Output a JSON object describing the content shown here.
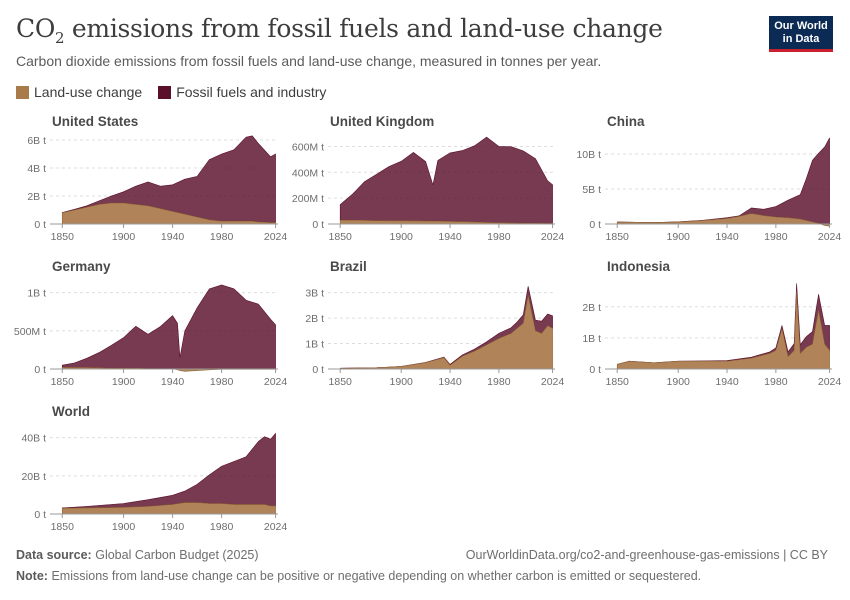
{
  "title_main": "CO",
  "title_sub": "2",
  "title_rest": " emissions from fossil fuels and land-use change",
  "subtitle": "Carbon dioxide emissions from fossil fuels and land-use change, measured in tonnes per year.",
  "logo": {
    "line1": "Our World",
    "line2": "in Data"
  },
  "legend": [
    {
      "label": "Land-use change",
      "color": "#a97a4a"
    },
    {
      "label": "Fossil fuels and industry",
      "color": "#5a0f2b"
    }
  ],
  "footer": {
    "source_label": "Data source:",
    "source_value": "Global Carbon Budget (2025)",
    "url": "OurWorldinData.org/co2-and-greenhouse-gas-emissions | CC BY",
    "note_label": "Note:",
    "note_value": "Emissions from land-use change can be positive or negative depending on whether carbon is emitted or sequestered."
  },
  "chart_data": [
    {
      "type": "area",
      "title": "United States",
      "xticks": [
        1850,
        1900,
        1940,
        1980,
        2024
      ],
      "ylim": [
        0,
        6000000000
      ],
      "yticks": [
        0,
        2000000000,
        4000000000,
        6000000000
      ],
      "ytick_labels": [
        "0 t",
        "2B t",
        "4B t",
        "6B t"
      ],
      "x": [
        1850,
        1860,
        1870,
        1880,
        1890,
        1900,
        1910,
        1920,
        1930,
        1940,
        1950,
        1960,
        1970,
        1980,
        1990,
        2000,
        2005,
        2010,
        2020,
        2024
      ],
      "series": [
        {
          "name": "Land-use change",
          "values": [
            800000000,
            1000000000,
            1200000000,
            1400000000,
            1500000000,
            1500000000,
            1400000000,
            1300000000,
            1100000000,
            900000000,
            700000000,
            500000000,
            300000000,
            200000000,
            200000000,
            200000000,
            200000000,
            150000000,
            100000000,
            100000000
          ]
        },
        {
          "name": "Fossil fuels and industry",
          "values": [
            20000000,
            50000000,
            100000000,
            250000000,
            500000000,
            800000000,
            1300000000,
            1700000000,
            1600000000,
            1900000000,
            2500000000,
            2900000000,
            4300000000,
            4800000000,
            5100000000,
            6000000000,
            6100000000,
            5600000000,
            4700000000,
            4900000000
          ]
        }
      ]
    },
    {
      "type": "area",
      "title": "United Kingdom",
      "xticks": [
        1850,
        1900,
        1940,
        1980,
        2024
      ],
      "ylim": [
        0,
        650000000
      ],
      "yticks": [
        0,
        200000000,
        400000000,
        600000000
      ],
      "ytick_labels": [
        "0 t",
        "200M t",
        "400M t",
        "600M t"
      ],
      "x": [
        1850,
        1860,
        1870,
        1880,
        1890,
        1900,
        1910,
        1920,
        1926,
        1930,
        1940,
        1950,
        1960,
        1970,
        1980,
        1990,
        2000,
        2010,
        2020,
        2024
      ],
      "series": [
        {
          "name": "Land-use change",
          "values": [
            30000000,
            30000000,
            28000000,
            26000000,
            25000000,
            25000000,
            24000000,
            23000000,
            22000000,
            22000000,
            20000000,
            18000000,
            15000000,
            12000000,
            10000000,
            8000000,
            6000000,
            5000000,
            4000000,
            4000000
          ]
        },
        {
          "name": "Fossil fuels and industry",
          "values": [
            120000000,
            200000000,
            300000000,
            360000000,
            420000000,
            460000000,
            530000000,
            460000000,
            280000000,
            470000000,
            530000000,
            550000000,
            590000000,
            660000000,
            590000000,
            590000000,
            560000000,
            500000000,
            330000000,
            300000000
          ]
        }
      ]
    },
    {
      "type": "area",
      "title": "China",
      "xticks": [
        1850,
        1900,
        1940,
        1980,
        2024
      ],
      "ylim": [
        0,
        12000000000
      ],
      "yticks": [
        0,
        5000000000,
        10000000000
      ],
      "ytick_labels": [
        "0 t",
        "5B t",
        "10B t"
      ],
      "x": [
        1850,
        1880,
        1900,
        1920,
        1940,
        1950,
        1960,
        1970,
        1980,
        1990,
        2000,
        2005,
        2010,
        2015,
        2020,
        2024
      ],
      "series": [
        {
          "name": "Land-use change",
          "values": [
            300000000,
            200000000,
            300000000,
            500000000,
            800000000,
            1100000000,
            1500000000,
            1200000000,
            1000000000,
            900000000,
            700000000,
            500000000,
            300000000,
            100000000,
            -200000000,
            -300000000
          ]
        },
        {
          "name": "Fossil fuels and industry",
          "values": [
            0,
            0,
            10000000,
            20000000,
            100000000,
            80000000,
            800000000,
            900000000,
            1500000000,
            2500000000,
            3500000000,
            6000000000,
            8800000000,
            10000000000,
            11000000000,
            12300000000
          ]
        }
      ]
    },
    {
      "type": "area",
      "title": "Germany",
      "xticks": [
        1850,
        1900,
        1940,
        1980,
        2024
      ],
      "ylim": [
        0,
        1100000000
      ],
      "yticks": [
        0,
        500000000,
        1000000000
      ],
      "ytick_labels": [
        "0 t",
        "500M t",
        "1B t"
      ],
      "x": [
        1850,
        1860,
        1870,
        1880,
        1890,
        1900,
        1910,
        1920,
        1930,
        1940,
        1944,
        1946,
        1950,
        1960,
        1970,
        1980,
        1990,
        2000,
        2010,
        2020,
        2024
      ],
      "series": [
        {
          "name": "Land-use change",
          "values": [
            20000000,
            20000000,
            20000000,
            15000000,
            10000000,
            10000000,
            10000000,
            5000000,
            5000000,
            0,
            -10000000,
            -20000000,
            -30000000,
            -20000000,
            -10000000,
            -5000000,
            -5000000,
            -5000000,
            -5000000,
            -5000000,
            -5000000
          ]
        },
        {
          "name": "Fossil fuels and industry",
          "values": [
            30000000,
            60000000,
            120000000,
            200000000,
            300000000,
            400000000,
            550000000,
            450000000,
            550000000,
            700000000,
            600000000,
            150000000,
            500000000,
            800000000,
            1050000000,
            1100000000,
            1050000000,
            900000000,
            850000000,
            650000000,
            580000000
          ]
        }
      ]
    },
    {
      "type": "area",
      "title": "Brazil",
      "xticks": [
        1850,
        1900,
        1940,
        1980,
        2024
      ],
      "ylim": [
        0,
        3300000000
      ],
      "yticks": [
        0,
        1000000000,
        2000000000,
        3000000000
      ],
      "ytick_labels": [
        "0 t",
        "1B t",
        "2B t",
        "3B t"
      ],
      "x": [
        1850,
        1880,
        1900,
        1920,
        1935,
        1940,
        1950,
        1960,
        1970,
        1980,
        1990,
        1995,
        2000,
        2004,
        2010,
        2015,
        2020,
        2024
      ],
      "series": [
        {
          "name": "Land-use change",
          "values": [
            30000000,
            50000000,
            100000000,
            250000000,
            450000000,
            150000000,
            500000000,
            700000000,
            950000000,
            1200000000,
            1400000000,
            1600000000,
            1800000000,
            2900000000,
            1500000000,
            1400000000,
            1700000000,
            1600000000
          ]
        },
        {
          "name": "Fossil fuels and industry",
          "values": [
            0,
            0,
            0,
            10000000,
            20000000,
            30000000,
            50000000,
            80000000,
            120000000,
            200000000,
            220000000,
            250000000,
            330000000,
            350000000,
            420000000,
            480000000,
            460000000,
            490000000
          ]
        }
      ]
    },
    {
      "type": "area",
      "title": "Indonesia",
      "xticks": [
        1850,
        1900,
        1940,
        1980,
        2024
      ],
      "ylim": [
        0,
        2700000000
      ],
      "yticks": [
        0,
        1000000000,
        2000000000
      ],
      "ytick_labels": [
        "0 t",
        "1B t",
        "2B t"
      ],
      "x": [
        1850,
        1860,
        1880,
        1900,
        1920,
        1940,
        1960,
        1975,
        1980,
        1985,
        1990,
        1995,
        1997,
        2000,
        2005,
        2010,
        2015,
        2020,
        2024
      ],
      "series": [
        {
          "name": "Land-use change",
          "values": [
            150000000,
            250000000,
            200000000,
            250000000,
            250000000,
            250000000,
            350000000,
            500000000,
            600000000,
            1300000000,
            400000000,
            600000000,
            2500000000,
            500000000,
            700000000,
            800000000,
            1900000000,
            800000000,
            600000000
          ]
        },
        {
          "name": "Fossil fuels and industry",
          "values": [
            0,
            0,
            0,
            0,
            10000000,
            20000000,
            30000000,
            50000000,
            80000000,
            100000000,
            150000000,
            220000000,
            250000000,
            280000000,
            340000000,
            400000000,
            500000000,
            600000000,
            800000000
          ]
        }
      ]
    },
    {
      "type": "area",
      "title": "World",
      "xticks": [
        1850,
        1900,
        1940,
        1980,
        2024
      ],
      "ylim": [
        0,
        44000000000
      ],
      "yticks": [
        0,
        20000000000,
        40000000000
      ],
      "ytick_labels": [
        "0 t",
        "20B t",
        "40B t"
      ],
      "x": [
        1850,
        1870,
        1900,
        1920,
        1940,
        1950,
        1960,
        1970,
        1980,
        1990,
        2000,
        2010,
        2015,
        2020,
        2024
      ],
      "series": [
        {
          "name": "Land-use change",
          "values": [
            3000000000,
            3200000000,
            3500000000,
            4000000000,
            5000000000,
            6000000000,
            6000000000,
            5500000000,
            5500000000,
            5000000000,
            5000000000,
            5000000000,
            5000000000,
            4200000000,
            4200000000
          ]
        },
        {
          "name": "Fossil fuels and industry",
          "values": [
            200000000,
            800000000,
            2000000000,
            3500000000,
            4800000000,
            6000000000,
            9500000000,
            15000000000,
            19500000000,
            22500000000,
            25000000000,
            33000000000,
            35500000000,
            35000000000,
            38000000000
          ]
        }
      ]
    }
  ]
}
